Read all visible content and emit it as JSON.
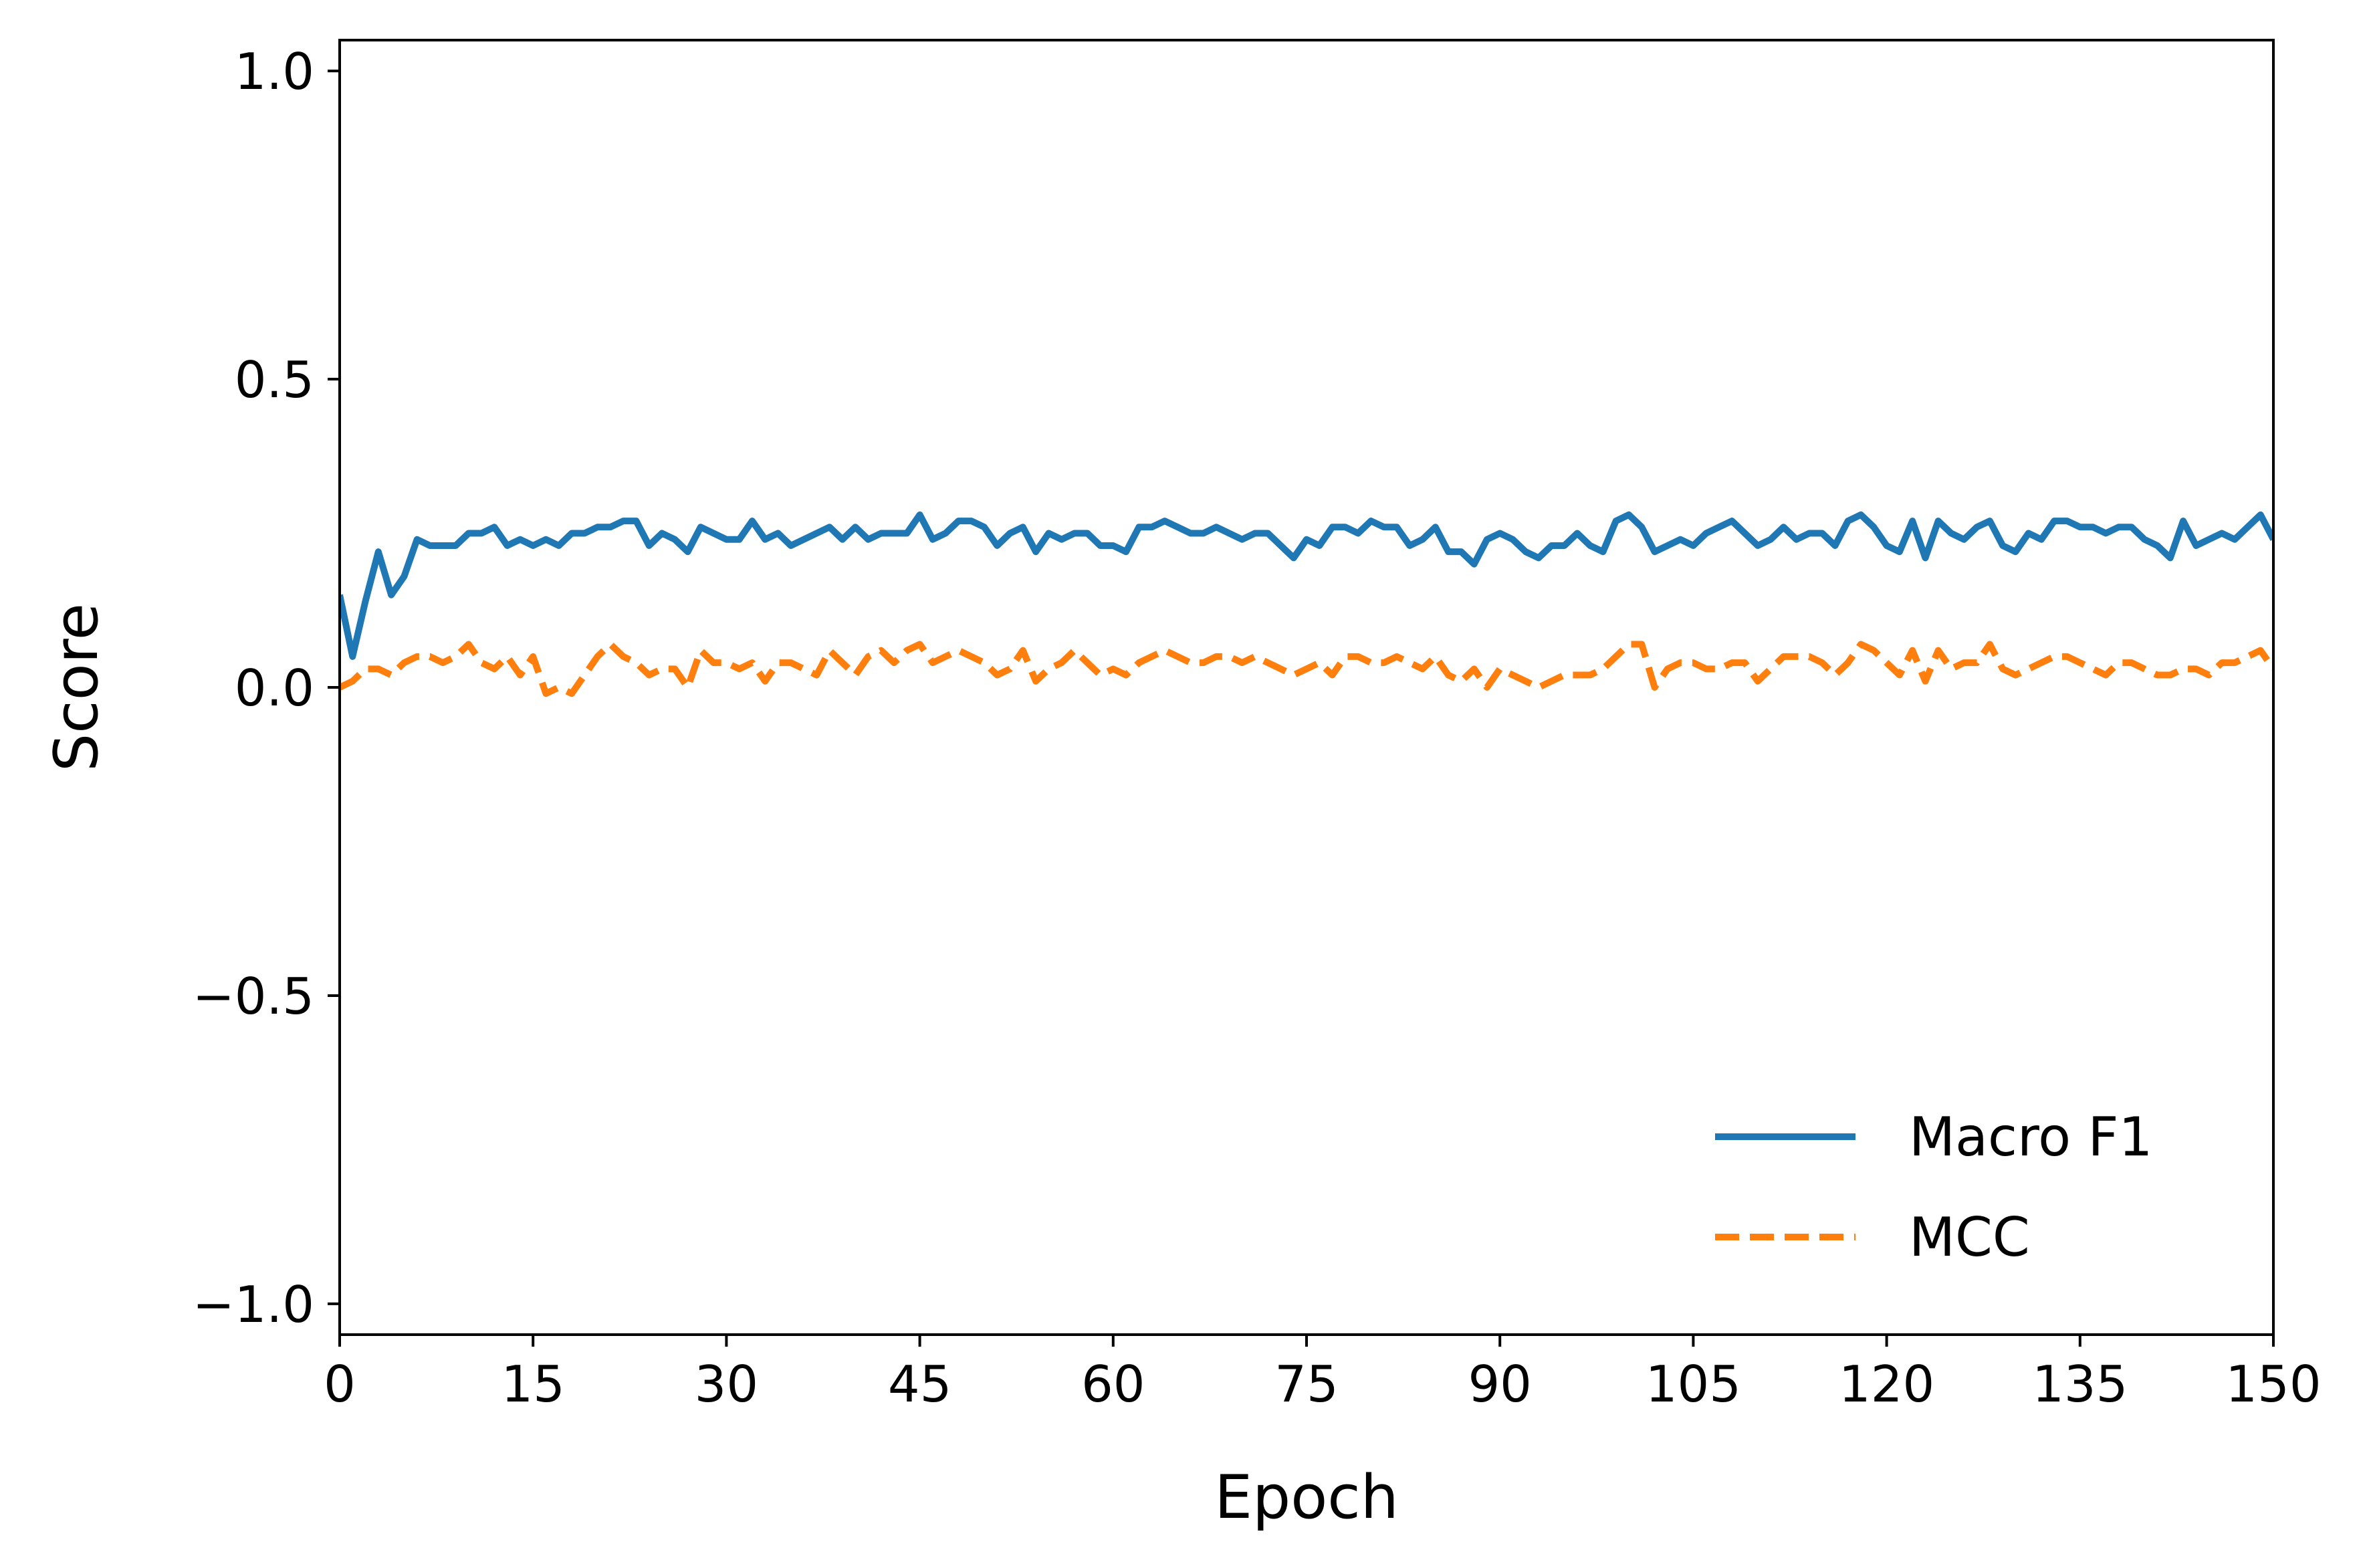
{
  "chart_data": {
    "type": "line",
    "title": "",
    "xlabel": "Epoch",
    "ylabel": "Score",
    "xlim": [
      0,
      150
    ],
    "ylim": [
      -1.05,
      1.05
    ],
    "xticks": [
      0,
      15,
      30,
      45,
      60,
      75,
      90,
      105,
      120,
      135,
      150
    ],
    "xtick_labels": [
      "0",
      "15",
      "30",
      "45",
      "60",
      "75",
      "90",
      "105",
      "120",
      "135",
      "150"
    ],
    "yticks": [
      -1.0,
      -0.5,
      0.0,
      0.5,
      1.0
    ],
    "ytick_labels": [
      "−1.0",
      "−0.5",
      "0.0",
      "0.5",
      "1.0"
    ],
    "grid": false,
    "legend_position": "lower-right",
    "x": [
      0,
      1,
      2,
      3,
      4,
      5,
      6,
      7,
      8,
      9,
      10,
      11,
      12,
      13,
      14,
      15,
      16,
      17,
      18,
      19,
      20,
      21,
      22,
      23,
      24,
      25,
      26,
      27,
      28,
      29,
      30,
      31,
      32,
      33,
      34,
      35,
      36,
      37,
      38,
      39,
      40,
      41,
      42,
      43,
      44,
      45,
      46,
      47,
      48,
      49,
      50,
      51,
      52,
      53,
      54,
      55,
      56,
      57,
      58,
      59,
      60,
      61,
      62,
      63,
      64,
      65,
      66,
      67,
      68,
      69,
      70,
      71,
      72,
      73,
      74,
      75,
      76,
      77,
      78,
      79,
      80,
      81,
      82,
      83,
      84,
      85,
      86,
      87,
      88,
      89,
      90,
      91,
      92,
      93,
      94,
      95,
      96,
      97,
      98,
      99,
      100,
      101,
      102,
      103,
      104,
      105,
      106,
      107,
      108,
      109,
      110,
      111,
      112,
      113,
      114,
      115,
      116,
      117,
      118,
      119,
      120,
      121,
      122,
      123,
      124,
      125,
      126,
      127,
      128,
      129,
      130,
      131,
      132,
      133,
      134,
      135,
      136,
      137,
      138,
      139,
      140,
      141,
      142,
      143,
      144,
      145,
      146,
      147,
      148,
      149,
      150
    ],
    "series": [
      {
        "name": "Macro F1",
        "color": "#1f77b4",
        "dash": "solid",
        "values": [
          0.15,
          0.05,
          0.14,
          0.22,
          0.15,
          0.18,
          0.24,
          0.23,
          0.23,
          0.23,
          0.25,
          0.25,
          0.26,
          0.23,
          0.24,
          0.23,
          0.24,
          0.23,
          0.25,
          0.25,
          0.26,
          0.26,
          0.27,
          0.27,
          0.23,
          0.25,
          0.24,
          0.22,
          0.26,
          0.25,
          0.24,
          0.24,
          0.27,
          0.24,
          0.25,
          0.23,
          0.24,
          0.25,
          0.26,
          0.24,
          0.26,
          0.24,
          0.25,
          0.25,
          0.25,
          0.28,
          0.24,
          0.25,
          0.27,
          0.27,
          0.26,
          0.23,
          0.25,
          0.26,
          0.22,
          0.25,
          0.24,
          0.25,
          0.25,
          0.23,
          0.23,
          0.22,
          0.26,
          0.26,
          0.27,
          0.26,
          0.25,
          0.25,
          0.26,
          0.25,
          0.24,
          0.25,
          0.25,
          0.23,
          0.21,
          0.24,
          0.23,
          0.26,
          0.26,
          0.25,
          0.27,
          0.26,
          0.26,
          0.23,
          0.24,
          0.26,
          0.22,
          0.22,
          0.2,
          0.24,
          0.25,
          0.24,
          0.22,
          0.21,
          0.23,
          0.23,
          0.25,
          0.23,
          0.22,
          0.27,
          0.28,
          0.26,
          0.22,
          0.23,
          0.24,
          0.23,
          0.25,
          0.26,
          0.27,
          0.25,
          0.23,
          0.24,
          0.26,
          0.24,
          0.25,
          0.25,
          0.23,
          0.27,
          0.28,
          0.26,
          0.23,
          0.22,
          0.27,
          0.21,
          0.27,
          0.25,
          0.24,
          0.26,
          0.27,
          0.23,
          0.22,
          0.25,
          0.24,
          0.27,
          0.27,
          0.26,
          0.26,
          0.25,
          0.26,
          0.26,
          0.24,
          0.23,
          0.21,
          0.27,
          0.23,
          0.24,
          0.25,
          0.24,
          0.26,
          0.28,
          0.24
        ]
      },
      {
        "name": "MCC",
        "color": "#ff7f0e",
        "dash": "dashed",
        "values": [
          0.0,
          0.01,
          0.03,
          0.03,
          0.02,
          0.04,
          0.05,
          0.05,
          0.04,
          0.05,
          0.07,
          0.04,
          0.03,
          0.05,
          0.02,
          0.05,
          -0.01,
          0.0,
          -0.01,
          0.02,
          0.05,
          0.07,
          0.05,
          0.04,
          0.02,
          0.03,
          0.03,
          0.0,
          0.06,
          0.04,
          0.04,
          0.03,
          0.04,
          0.01,
          0.04,
          0.04,
          0.03,
          0.02,
          0.06,
          0.04,
          0.02,
          0.05,
          0.06,
          0.04,
          0.06,
          0.07,
          0.04,
          0.05,
          0.06,
          0.05,
          0.04,
          0.02,
          0.03,
          0.06,
          0.01,
          0.03,
          0.04,
          0.06,
          0.04,
          0.02,
          0.03,
          0.02,
          0.04,
          0.05,
          0.06,
          0.05,
          0.04,
          0.04,
          0.05,
          0.05,
          0.04,
          0.05,
          0.04,
          0.03,
          0.02,
          0.03,
          0.04,
          0.02,
          0.05,
          0.05,
          0.04,
          0.04,
          0.05,
          0.04,
          0.03,
          0.05,
          0.02,
          0.01,
          0.03,
          0.0,
          0.03,
          0.02,
          0.01,
          0.0,
          0.01,
          0.02,
          0.02,
          0.02,
          0.03,
          0.05,
          0.07,
          0.07,
          0.0,
          0.03,
          0.04,
          0.04,
          0.03,
          0.03,
          0.04,
          0.04,
          0.01,
          0.03,
          0.05,
          0.05,
          0.05,
          0.04,
          0.02,
          0.04,
          0.07,
          0.06,
          0.04,
          0.02,
          0.06,
          0.01,
          0.06,
          0.03,
          0.04,
          0.04,
          0.07,
          0.03,
          0.02,
          0.03,
          0.04,
          0.05,
          0.05,
          0.04,
          0.03,
          0.02,
          0.04,
          0.04,
          0.03,
          0.02,
          0.02,
          0.03,
          0.03,
          0.02,
          0.04,
          0.04,
          0.05,
          0.06,
          0.03
        ]
      }
    ]
  }
}
